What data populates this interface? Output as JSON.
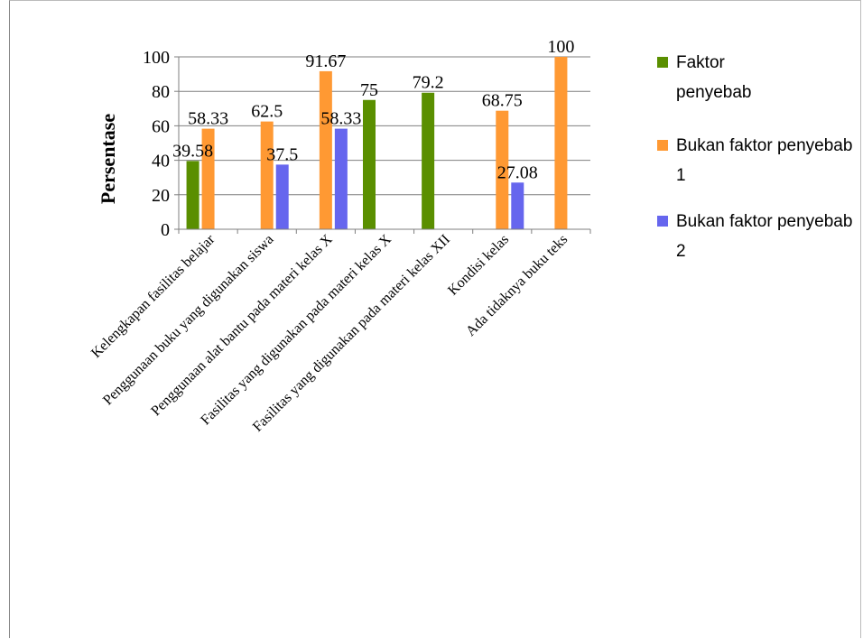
{
  "chart_data": {
    "type": "bar",
    "title": "",
    "xlabel": "",
    "ylabel": "Persentase",
    "ylim": [
      0,
      100
    ],
    "yticks": [
      0,
      20,
      40,
      60,
      80,
      100
    ],
    "grid": true,
    "legend_position": "right",
    "categories": [
      "Kelengkapan fasilitas belajar",
      "Penggunaan buku yang digunakan siswa",
      "Penggunaan alat bantu pada materi kelas X",
      "Fasilitas yang digunakan pada materi kelas X",
      "Fasilitas yang digunakan pada materi kelas XII",
      "Kondisi kelas",
      "Ada tidaknya buku teks"
    ],
    "series": [
      {
        "name": "Faktor penyebab",
        "color": "#5a8f00",
        "values": [
          39.58,
          null,
          null,
          75,
          79.2,
          null,
          null
        ],
        "labels": [
          "39.58",
          "",
          "",
          "75",
          "79.2",
          "",
          ""
        ]
      },
      {
        "name": "Bukan faktor penyebab 1",
        "color": "#ff9933",
        "values": [
          58.33,
          62.5,
          91.67,
          null,
          null,
          68.75,
          100
        ],
        "labels": [
          "58.33",
          "62.5",
          "91.67",
          "",
          "",
          "68.75",
          "100"
        ]
      },
      {
        "name": "Bukan faktor penyebab 2",
        "color": "#6666ee",
        "values": [
          null,
          37.5,
          58.33,
          null,
          null,
          27.08,
          null
        ],
        "labels": [
          "",
          "37.5",
          "58.33",
          "",
          "",
          "27.08",
          ""
        ]
      }
    ]
  }
}
